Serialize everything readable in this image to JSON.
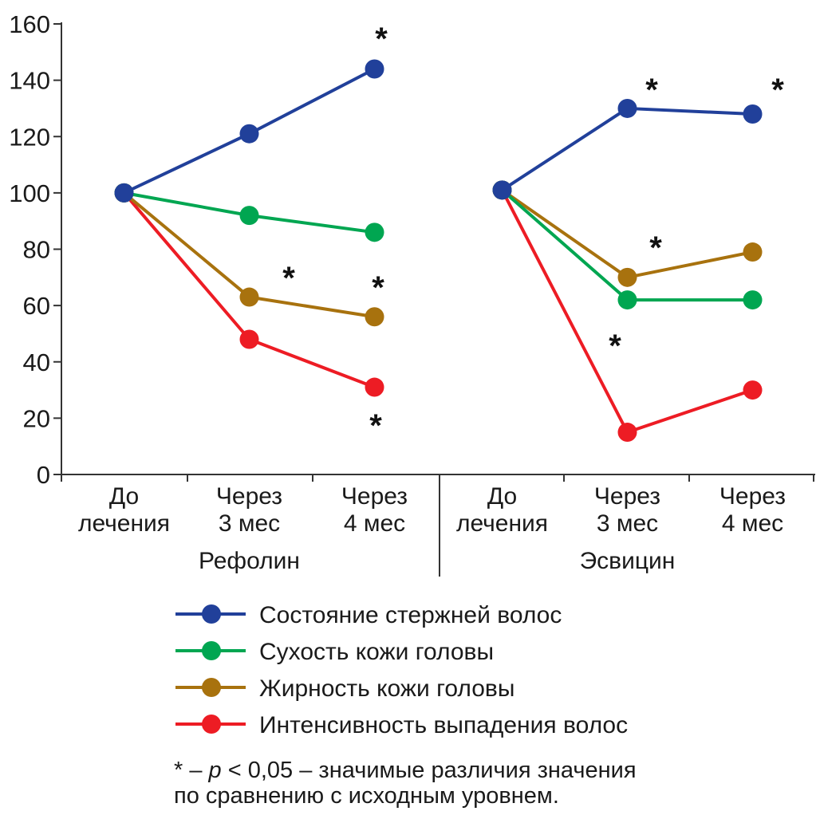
{
  "chart_data": {
    "type": "line",
    "title": "",
    "xlabel": "",
    "ylabel": "",
    "ylim": [
      0,
      160
    ],
    "yticks": [
      0,
      20,
      40,
      60,
      80,
      100,
      120,
      140,
      160
    ],
    "grid": false,
    "groups": [
      {
        "name": "Рефолин",
        "categories": [
          [
            "До",
            "лечения"
          ],
          [
            "Через",
            "3 мес"
          ],
          [
            "Через",
            "4 мес"
          ]
        ],
        "series": [
          {
            "name": "Состояние стержней волос",
            "values": [
              100,
              121,
              144
            ],
            "significant": [
              false,
              false,
              true
            ]
          },
          {
            "name": "Сухость кожи головы",
            "values": [
              100,
              92,
              86
            ],
            "significant": [
              false,
              false,
              false
            ]
          },
          {
            "name": "Жирность кожи головы",
            "values": [
              100,
              63,
              56
            ],
            "significant": [
              false,
              true,
              true
            ]
          },
          {
            "name": "Интенсивность выпадения волос",
            "values": [
              100,
              48,
              31
            ],
            "significant": [
              false,
              false,
              true
            ]
          }
        ]
      },
      {
        "name": "Эсвицин",
        "categories": [
          [
            "До",
            "лечения"
          ],
          [
            "Через",
            "3 мес"
          ],
          [
            "Через",
            "4 мес"
          ]
        ],
        "series": [
          {
            "name": "Состояние стержней волос",
            "values": [
              101,
              130,
              128
            ],
            "significant": [
              false,
              true,
              true
            ]
          },
          {
            "name": "Сухость кожи головы",
            "values": [
              101,
              62,
              62
            ],
            "significant": [
              false,
              false,
              false
            ]
          },
          {
            "name": "Жирность кожи головы",
            "values": [
              101,
              70,
              79
            ],
            "significant": [
              false,
              true,
              false
            ]
          },
          {
            "name": "Интенсивность выпадения волос",
            "values": [
              101,
              15,
              30
            ],
            "significant": [
              false,
              true,
              false
            ]
          }
        ]
      }
    ],
    "legend": {
      "placement": "bottom",
      "entries": [
        {
          "label": "Состояние стержней волос",
          "color": "#21409A"
        },
        {
          "label": "Сухость кожи головы",
          "color": "#00A651"
        },
        {
          "label": "Жирность кожи головы",
          "color": "#A8720E"
        },
        {
          "label": "Интенсивность выпадения волос",
          "color": "#ED1C24"
        }
      ]
    },
    "significance_marker": "*",
    "footnote": {
      "line1_prefix": "* – ",
      "line1_p": "p",
      "line1_rest": " < 0,05 – значимые различия значения",
      "line2": "по сравнению с исходным уровнем."
    }
  }
}
